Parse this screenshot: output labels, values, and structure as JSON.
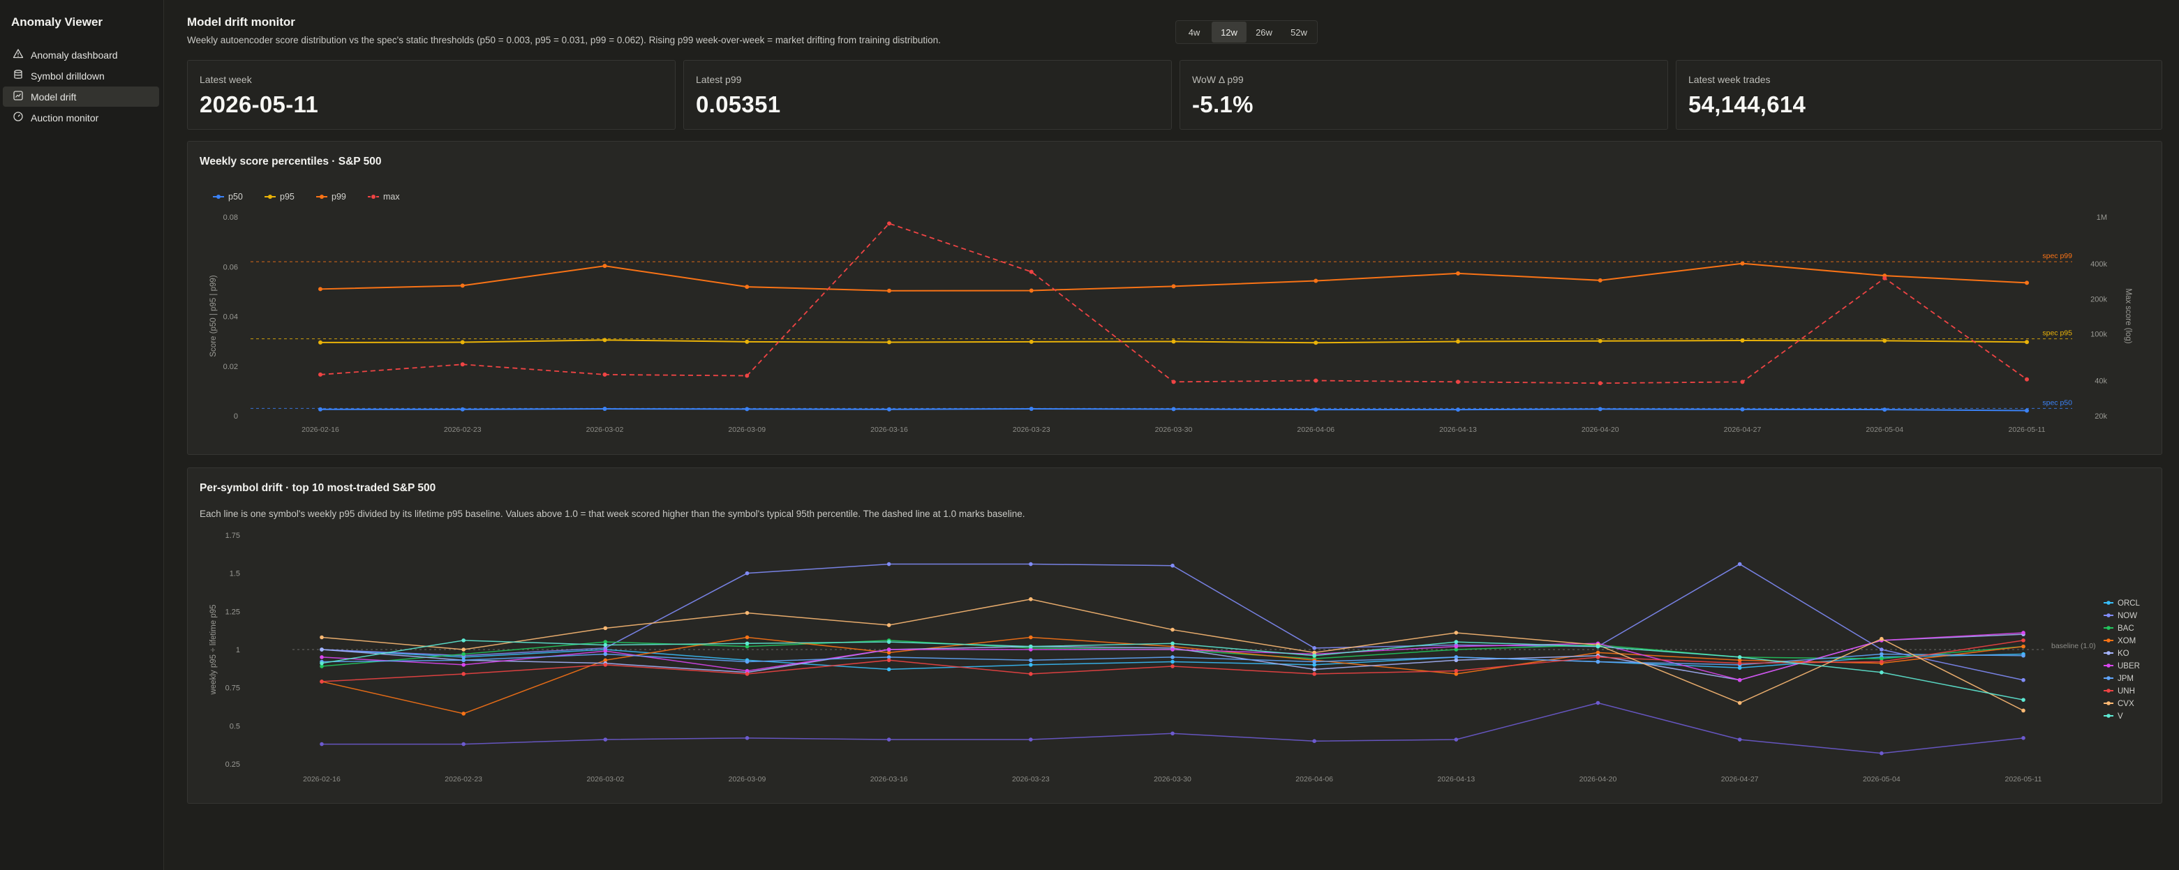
{
  "app": {
    "title": "Anomaly Viewer"
  },
  "nav": [
    {
      "label": "Anomaly dashboard",
      "icon": "warning-triangle-icon",
      "active": false
    },
    {
      "label": "Symbol drilldown",
      "icon": "database-icon",
      "active": false
    },
    {
      "label": "Model drift",
      "icon": "chart-icon",
      "active": true
    },
    {
      "label": "Auction monitor",
      "icon": "gauge-icon",
      "active": false
    }
  ],
  "header": {
    "title": "Model drift monitor",
    "subtitle": "Weekly autoencoder score distribution vs the spec's static thresholds (p50 = 0.003, p95 = 0.031, p99 = 0.062). Rising p99 week-over-week = market drifting from training distribution."
  },
  "range_options": [
    {
      "label": "4w",
      "active": false
    },
    {
      "label": "12w",
      "active": true
    },
    {
      "label": "26w",
      "active": false
    },
    {
      "label": "52w",
      "active": false
    }
  ],
  "stats": [
    {
      "label": "Latest week",
      "value": "2026-05-11"
    },
    {
      "label": "Latest p99",
      "value": "0.05351"
    },
    {
      "label": "WoW Δ p99",
      "value": "-5.1%"
    },
    {
      "label": "Latest week trades",
      "value": "54,144,614"
    }
  ],
  "colors": {
    "p50": "#3b82f6",
    "p95": "#eab308",
    "p99": "#f97316",
    "max": "#ef4444"
  },
  "chart_data": [
    {
      "type": "line",
      "title": "Weekly score percentiles · S&P 500",
      "ylabel": "Score (p50 | p95 | p99)",
      "ylabel_right": "Max score (log)",
      "x": [
        "2026-02-16",
        "2026-02-23",
        "2026-03-02",
        "2026-03-09",
        "2026-03-16",
        "2026-03-23",
        "2026-03-30",
        "2026-04-06",
        "2026-04-13",
        "2026-04-20",
        "2026-04-27",
        "2026-05-04",
        "2026-05-11"
      ],
      "ylim": [
        0,
        0.08
      ],
      "yticks": [
        0,
        0.02,
        0.04,
        0.06,
        0.08
      ],
      "ytick_labels": [
        "0",
        "0.02",
        "0.04",
        "0.06",
        "0.08"
      ],
      "y2scale": "log",
      "y2lim": [
        20000,
        1000000
      ],
      "y2ticks": [
        20000,
        40000,
        100000,
        200000,
        400000,
        1000000
      ],
      "y2tick_labels": [
        "20k",
        "40k",
        "100k",
        "200k",
        "400k",
        "1M"
      ],
      "legend": "top-left",
      "series": [
        {
          "name": "p50",
          "axis": "left",
          "dashed": false,
          "values": [
            0.0026,
            0.0026,
            0.0028,
            0.0027,
            0.0026,
            0.0028,
            0.0027,
            0.0025,
            0.0025,
            0.0027,
            0.0026,
            0.0025,
            0.0021
          ]
        },
        {
          "name": "p95",
          "axis": "left",
          "dashed": false,
          "values": [
            0.0295,
            0.0296,
            0.0305,
            0.0298,
            0.0296,
            0.0298,
            0.0299,
            0.0294,
            0.0299,
            0.0301,
            0.0303,
            0.0302,
            0.0297
          ]
        },
        {
          "name": "p99",
          "axis": "left",
          "dashed": false,
          "values": [
            0.051,
            0.0524,
            0.0603,
            0.0519,
            0.0503,
            0.0504,
            0.0521,
            0.0543,
            0.0573,
            0.0545,
            0.0613,
            0.0564,
            0.0535
          ]
        },
        {
          "name": "max",
          "axis": "right",
          "dashed": true,
          "values": [
            45000,
            55000,
            45000,
            44000,
            880000,
            340000,
            39000,
            40000,
            39000,
            38000,
            39000,
            300000,
            41000
          ]
        }
      ],
      "reference_lines": [
        {
          "label": "spec p99",
          "value": 0.062,
          "color": "#f97316"
        },
        {
          "label": "spec p95",
          "value": 0.031,
          "color": "#eab308"
        },
        {
          "label": "spec p50",
          "value": 0.003,
          "color": "#3b82f6"
        }
      ]
    },
    {
      "type": "line",
      "title": "Per-symbol drift · top 10 most-traded S&P 500",
      "subtitle": "Each line is one symbol's weekly p95 divided by its lifetime p95 baseline. Values above 1.0 = that week scored higher than the symbol's typical 95th percentile. The dashed line at 1.0 marks baseline.",
      "ylabel": "weekly p95 ÷ lifetime p95",
      "x": [
        "2026-02-16",
        "2026-02-23",
        "2026-03-02",
        "2026-03-09",
        "2026-03-16",
        "2026-03-23",
        "2026-03-30",
        "2026-04-06",
        "2026-04-13",
        "2026-04-20",
        "2026-04-27",
        "2026-05-04",
        "2026-05-11"
      ],
      "ylim": [
        0.25,
        1.75
      ],
      "yticks": [
        0.25,
        0.5,
        0.75,
        1,
        1.25,
        1.5,
        1.75
      ],
      "ytick_labels": [
        "0.25",
        "0.5",
        "0.75",
        "1",
        "1.25",
        "1.5",
        "1.75"
      ],
      "baseline": {
        "value": 1.0,
        "label": "baseline (1.0)"
      },
      "legend": "right",
      "series": [
        {
          "name": "ORCL",
          "color": "#38bdf8",
          "values": [
            1.0,
            0.95,
            1.0,
            0.93,
            0.87,
            0.9,
            0.92,
            0.9,
            0.95,
            0.92,
            0.88,
            0.95,
            0.97
          ]
        },
        {
          "name": "NOW",
          "color": "#818cf8",
          "values": [
            1.0,
            0.96,
            1.01,
            1.5,
            1.56,
            1.56,
            1.55,
            1.01,
            1.03,
            1.02,
            1.56,
            1.0,
            0.8
          ]
        },
        {
          "name": "BAC",
          "color": "#22c55e",
          "values": [
            0.89,
            0.97,
            1.05,
            1.02,
            1.06,
            1.01,
            1.0,
            0.94,
            1.0,
            1.03,
            0.95,
            0.94,
            1.02
          ]
        },
        {
          "name": "XOM",
          "color": "#f97316",
          "values": [
            0.79,
            0.58,
            0.93,
            1.08,
            0.98,
            1.08,
            1.02,
            0.93,
            0.84,
            0.98,
            0.93,
            0.91,
            1.02
          ]
        },
        {
          "name": "KO",
          "color": "#a5b4fc",
          "values": [
            1.0,
            0.93,
            0.91,
            0.85,
            1.0,
            1.02,
            1.01,
            0.87,
            0.93,
            0.96,
            0.8,
            1.06,
            1.1
          ]
        },
        {
          "name": "UBER",
          "color": "#d946ef",
          "values": [
            0.95,
            0.9,
            0.99,
            0.86,
            1.0,
            1.0,
            1.0,
            0.97,
            1.02,
            1.04,
            0.8,
            1.06,
            1.11
          ]
        },
        {
          "name": "JPM",
          "color": "#60a5fa",
          "values": [
            0.92,
            0.93,
            0.97,
            0.92,
            0.95,
            0.93,
            0.95,
            0.92,
            0.95,
            0.92,
            0.9,
            0.97,
            0.96
          ]
        },
        {
          "name": "UNH",
          "color": "#ef4444",
          "values": [
            0.79,
            0.84,
            0.9,
            0.84,
            0.93,
            0.84,
            0.89,
            0.84,
            0.86,
            0.95,
            0.91,
            0.92,
            1.06
          ]
        },
        {
          "name": "CVX",
          "color": "#fdba74",
          "values": [
            1.08,
            1.0,
            1.14,
            1.24,
            1.16,
            1.33,
            1.13,
            0.98,
            1.11,
            1.03,
            0.65,
            1.07,
            0.6
          ]
        },
        {
          "name": "V",
          "color": "#5eead4",
          "values": [
            0.91,
            1.06,
            1.03,
            1.04,
            1.05,
            1.02,
            1.04,
            0.96,
            1.05,
            1.02,
            0.95,
            0.85,
            0.67
          ]
        },
        {
          "name": "",
          "color": "#6d5bd0",
          "values": [
            0.38,
            0.38,
            0.41,
            0.42,
            0.41,
            0.41,
            0.45,
            0.4,
            0.41,
            0.65,
            0.41,
            0.32,
            0.42
          ]
        }
      ]
    }
  ]
}
